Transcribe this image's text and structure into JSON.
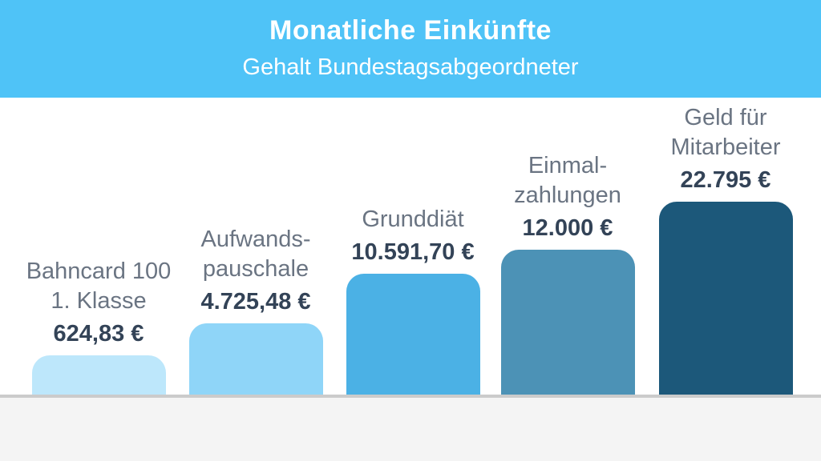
{
  "header": {
    "title": "Monatliche Einkünfte",
    "subtitle": "Gehalt Bundestagsabgeordneter",
    "background": "#4FC3F7",
    "text_color": "#FFFFFF"
  },
  "chart_data": {
    "type": "bar",
    "title": "Monatliche Einkünfte",
    "subtitle": "Gehalt Bundestagsabgeordneter",
    "categories": [
      "Bahncard 100 1. Klasse",
      "Aufwandspauschale",
      "Grunddiät",
      "Einmalzahlungen",
      "Geld für Mitarbeiter"
    ],
    "values": [
      624.83,
      4725.48,
      10591.7,
      12000,
      22795
    ],
    "value_labels": [
      "624,83 €",
      "4.725,48 €",
      "10.591,70 €",
      "12.000 €",
      "22.795 €"
    ],
    "unit": "€",
    "xlabel": "",
    "ylabel": "",
    "legend": false,
    "gridlines": false,
    "bar_colors": [
      "#BDE7FB",
      "#8FD5F8",
      "#4BB1E5",
      "#4C92B6",
      "#1C587A"
    ]
  },
  "bars": [
    {
      "label_line1": "Bahncard 100",
      "label_line2": "1. Klasse",
      "value": "624,83 €",
      "color": "#BDE7FB"
    },
    {
      "label_line1": "Aufwands-",
      "label_line2": "pauschale",
      "value": "4.725,48 €",
      "color": "#8FD5F8"
    },
    {
      "label_line1": "Grunddiät",
      "label_line2": "",
      "value": "10.591,70 €",
      "color": "#4BB1E5"
    },
    {
      "label_line1": "Einmal-",
      "label_line2": "zahlungen",
      "value": "12.000 €",
      "color": "#4C92B6"
    },
    {
      "label_line1": "Geld für",
      "label_line2": "Mitarbeiter",
      "value": "22.795 €",
      "color": "#1C587A"
    }
  ],
  "colors": {
    "label_text": "#6A7482",
    "value_text": "#334357",
    "floor_line": "#CBCBCB",
    "footer_bg": "#F4F4F4",
    "chart_bg": "#FFFFFF"
  }
}
